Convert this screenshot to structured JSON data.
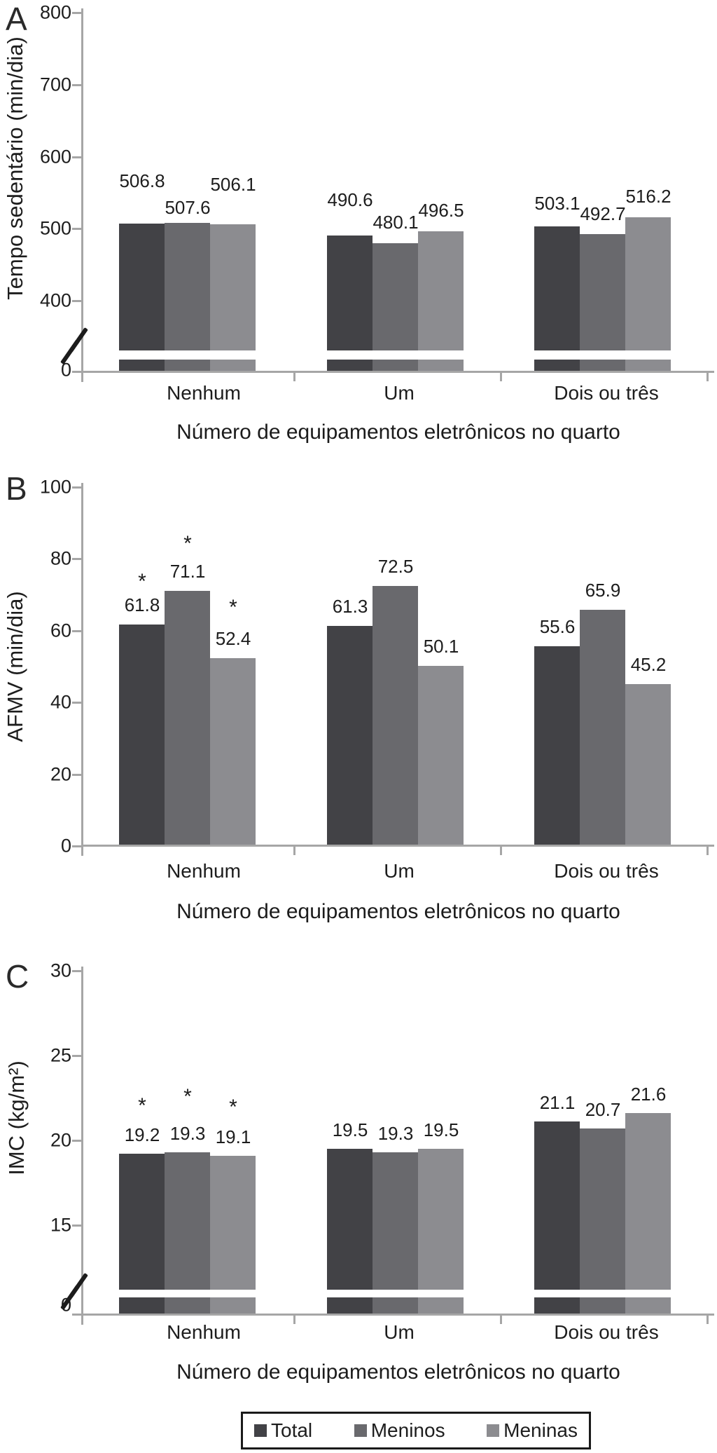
{
  "figure": {
    "series_colors": {
      "Total": "#424246",
      "Meninos": "#69696d",
      "Meninas": "#8c8c90"
    },
    "axis_color": "#a6a6a6",
    "legend": {
      "labels": [
        "Total",
        "Meninos",
        "Meninas"
      ]
    }
  },
  "chart_data": [
    {
      "panel": "A",
      "type": "bar",
      "ylabel": "Tempo sedentário (min/dia)",
      "xlabel": "Número de equipamentos eletrônicos no quarto",
      "categories": [
        "Nenhum",
        "Um",
        "Dois ou três"
      ],
      "yticks": [
        800,
        700,
        600,
        500,
        400,
        0
      ],
      "ylim": [
        0,
        800
      ],
      "axis_break": true,
      "legend_position": "none",
      "series": [
        {
          "name": "Total",
          "values": [
            506.8,
            490.6,
            503.1
          ]
        },
        {
          "name": "Meninos",
          "values": [
            507.6,
            480.1,
            492.7
          ]
        },
        {
          "name": "Meninas",
          "values": [
            506.1,
            496.5,
            516.2
          ]
        }
      ],
      "significance": []
    },
    {
      "panel": "B",
      "type": "bar",
      "ylabel": "AFMV (min/dia)",
      "xlabel": "Número de equipamentos eletrônicos no quarto",
      "categories": [
        "Nenhum",
        "Um",
        "Dois ou três"
      ],
      "yticks": [
        100,
        80,
        60,
        40,
        20,
        0
      ],
      "ylim": [
        0,
        100
      ],
      "axis_break": false,
      "legend_position": "none",
      "series": [
        {
          "name": "Total",
          "values": [
            61.8,
            61.3,
            55.6
          ]
        },
        {
          "name": "Meninos",
          "values": [
            71.1,
            72.5,
            65.9
          ]
        },
        {
          "name": "Meninas",
          "values": [
            52.4,
            50.1,
            45.2
          ]
        }
      ],
      "significance": [
        {
          "category": "Nenhum",
          "series": [
            "Total",
            "Meninos",
            "Meninas"
          ],
          "marker": "*"
        }
      ]
    },
    {
      "panel": "C",
      "type": "bar",
      "ylabel": "IMC (kg/m²)",
      "xlabel": "Número de equipamentos eletrônicos no quarto",
      "categories": [
        "Nenhum",
        "Um",
        "Dois ou três"
      ],
      "yticks": [
        30,
        25,
        20,
        15,
        0
      ],
      "ylim": [
        0,
        30
      ],
      "axis_break": true,
      "legend_position": "bottom",
      "series": [
        {
          "name": "Total",
          "values": [
            19.2,
            19.5,
            21.1
          ]
        },
        {
          "name": "Meninos",
          "values": [
            19.3,
            19.3,
            20.7
          ]
        },
        {
          "name": "Meninas",
          "values": [
            19.1,
            19.5,
            21.6
          ]
        }
      ],
      "significance": [
        {
          "category": "Nenhum",
          "series": [
            "Total",
            "Meninos",
            "Meninas"
          ],
          "marker": "*"
        }
      ]
    }
  ]
}
